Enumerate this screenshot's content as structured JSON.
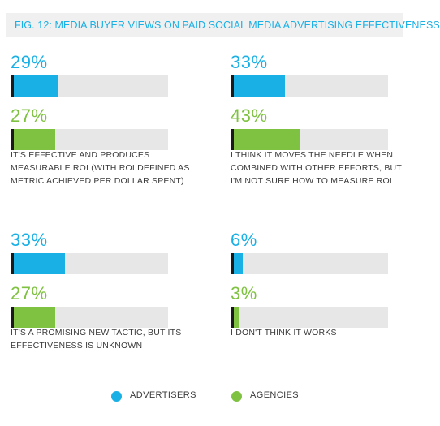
{
  "title": "FIG. 12: MEDIA BUYER VIEWS ON PAID SOCIAL MEDIA ADVERTISING EFFECTIVENESS",
  "colors": {
    "advertisers": "#19b0e6",
    "agencies": "#7fc241",
    "track": "#e7e7e7"
  },
  "legend": {
    "advertisers": "ADVERTISERS",
    "agencies": "AGENCIES"
  },
  "chart_data": {
    "type": "bar",
    "title": "FIG. 12: MEDIA BUYER VIEWS ON PAID SOCIAL MEDIA ADVERTISING EFFECTIVENESS",
    "ylim": [
      0,
      100
    ],
    "series_names": [
      "ADVERTISERS",
      "AGENCIES"
    ],
    "categories": [
      "IT'S EFFECTIVE AND PRODUCES MEASURABLE ROI (WITH ROI DEFINED AS METRIC ACHIEVED PER DOLLAR SPENT)",
      "I THINK IT MOVES THE NEEDLE WHEN COMBINED WITH OTHER EFFORTS, BUT I'M NOT SURE HOW TO MEASURE ROI",
      "IT'S A PROMISING NEW TACTIC, BUT ITS EFFECTIVENESS IS UNKNOWN",
      "I DON'T THINK IT WORKS"
    ],
    "series": [
      {
        "name": "ADVERTISERS",
        "values": [
          29,
          33,
          33,
          6
        ]
      },
      {
        "name": "AGENCIES",
        "values": [
          27,
          43,
          27,
          3
        ]
      }
    ],
    "labels": {
      "advertisers": [
        "29%",
        "33%",
        "33%",
        "6%"
      ],
      "agencies": [
        "27%",
        "43%",
        "27%",
        "3%"
      ]
    },
    "caption_lines": [
      [
        "IT'S EFFECTIVE AND PRODUCES",
        "MEASURABLE ROI (WITH ROI DEFINED AS",
        "METRIC ACHIEVED PER DOLLAR SPENT)"
      ],
      [
        "I THINK IT MOVES THE NEEDLE WHEN",
        "COMBINED WITH OTHER EFFORTS, BUT",
        "I'M NOT SURE HOW TO MEASURE ROI"
      ],
      [
        "IT'S A PROMISING NEW TACTIC, BUT ITS",
        "EFFECTIVENESS IS UNKNOWN"
      ],
      [
        "I DON'T THINK IT WORKS"
      ]
    ]
  }
}
